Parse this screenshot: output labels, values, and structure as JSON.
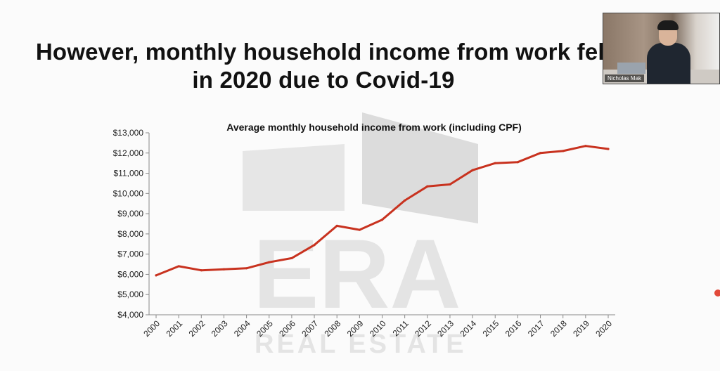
{
  "slide": {
    "title_line1": "However, monthly household income from work fell",
    "title_line2": "in 2020 due to Covid-19"
  },
  "watermark": {
    "brand": "ERA",
    "sub": "REAL ESTATE"
  },
  "video_tile": {
    "participant_name": "Nicholas Mak"
  },
  "colors": {
    "line": "#c8321f",
    "axis": "#888888",
    "text": "#111111"
  },
  "chart_data": {
    "type": "line",
    "title": "Average monthly household income from work (including CPF)",
    "categories": [
      "2000",
      "2001",
      "2002",
      "2003",
      "2004",
      "2005",
      "2006",
      "2007",
      "2008",
      "2009",
      "2010",
      "2011",
      "2012",
      "2013",
      "2014",
      "2015",
      "2016",
      "2017",
      "2018",
      "2019",
      "2020"
    ],
    "series": [
      {
        "values": [
          5950,
          6400,
          6200,
          6250,
          6300,
          6600,
          6800,
          7450,
          8400,
          8200,
          8700,
          9650,
          10350,
          10450,
          11150,
          11500,
          11550,
          12000,
          12100,
          12350,
          12200
        ]
      }
    ],
    "ylim": [
      4000,
      13000
    ],
    "yticks": [
      4000,
      5000,
      6000,
      7000,
      8000,
      9000,
      10000,
      11000,
      12000,
      13000
    ],
    "ytick_labels": [
      "$4,000",
      "$5,000",
      "$6,000",
      "$7,000",
      "$8,000",
      "$9,000",
      "$10,000",
      "$11,000",
      "$12,000",
      "$13,000"
    ],
    "grid": false,
    "legend": "none"
  }
}
